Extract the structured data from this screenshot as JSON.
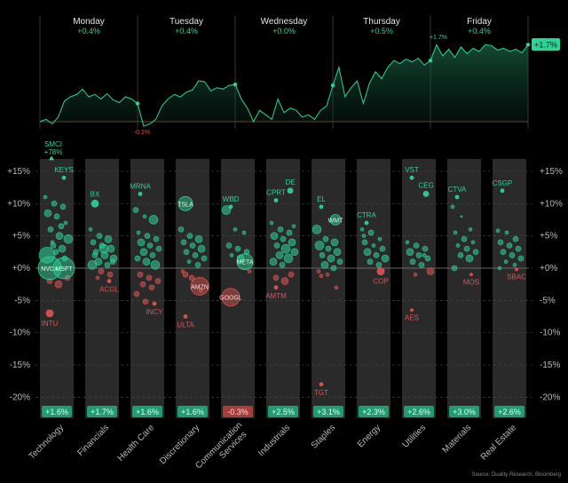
{
  "source": "Source: Duality Research, Bloomberg",
  "colors": {
    "up": "#2bd49a",
    "down": "#e0544f",
    "badge_up": "#1f9c72",
    "badge_down": "#a83c3a",
    "column_bg": "#2a2a2a",
    "grid": "#444444"
  },
  "weekly_chart": {
    "type": "area",
    "days": [
      {
        "name": "Monday",
        "change": "+0.4%"
      },
      {
        "name": "Tuesday",
        "change": "+0.4%"
      },
      {
        "name": "Wednesday",
        "change": "+0.0%"
      },
      {
        "name": "Thursday",
        "change": "+0.5%"
      },
      {
        "name": "Friday",
        "change": "+0.4%"
      }
    ],
    "values": [
      [
        0,
        0.05,
        -0.05,
        0.1,
        0.45,
        0.55,
        0.6,
        0.72,
        0.55,
        0.6,
        0.5,
        0.62,
        0.48,
        0.42,
        0.55,
        0.5,
        0.4
      ],
      [
        0.4,
        -0.1,
        -0.05,
        0.05,
        0.35,
        0.5,
        0.6,
        0.55,
        0.65,
        0.7,
        0.9,
        0.88,
        0.68,
        0.75,
        0.72,
        0.8,
        0.82
      ],
      [
        0.82,
        0.5,
        0.3,
        0.0,
        0.25,
        0.15,
        0.05,
        0.5,
        0.2,
        0.3,
        0.25,
        0.1,
        0.15,
        0.05,
        0.25,
        0.35,
        0.8
      ],
      [
        0.8,
        1.2,
        0.55,
        0.75,
        0.9,
        0.4,
        0.85,
        1.1,
        0.95,
        1.2,
        1.35,
        1.28,
        1.38,
        1.32,
        1.4,
        1.25,
        1.35
      ],
      [
        1.35,
        1.7,
        1.45,
        1.6,
        1.42,
        1.65,
        1.5,
        1.62,
        1.55,
        1.7,
        1.68,
        1.58,
        1.62,
        1.55,
        1.6,
        1.52,
        1.7
      ]
    ],
    "annotations": {
      "low": "-0.1%",
      "high": "+1.7%",
      "last": "+1.7%"
    },
    "ylim": [
      -0.2,
      1.9
    ]
  },
  "chart_data": {
    "type": "scatter",
    "y_ticks": [
      "+15%",
      "+10%",
      "+5%",
      "+0%",
      "-5%",
      "-10%",
      "-15%",
      "-20%"
    ],
    "y_values": [
      15,
      10,
      5,
      0,
      -5,
      -10,
      -15,
      -20
    ],
    "ylim": [
      -21,
      17
    ],
    "grid": true,
    "sectors": [
      {
        "name": "Technology",
        "return": "+1.6%",
        "positive": true,
        "labeled": [
          {
            "t": "SMCI",
            "note": "+78%",
            "v": 17,
            "r": 0,
            "offscale": true
          },
          {
            "t": "KEYS",
            "v": 14,
            "r": 2
          },
          {
            "t": "NVDA",
            "v": 0,
            "r": 13,
            "inside": true
          },
          {
            "t": "MSFT",
            "v": 0,
            "r": 12,
            "inside": true
          },
          {
            "t": "INTU",
            "v": -7,
            "r": 4
          }
        ],
        "others": [
          [
            11,
            2
          ],
          [
            10,
            3
          ],
          [
            9.5,
            3
          ],
          [
            8.5,
            4
          ],
          [
            8,
            3
          ],
          [
            7,
            2
          ],
          [
            6,
            3
          ],
          [
            5,
            4
          ],
          [
            4.5,
            5
          ],
          [
            3.5,
            3
          ],
          [
            3,
            4
          ],
          [
            2,
            9
          ],
          [
            2.5,
            3
          ],
          [
            1.5,
            3
          ],
          [
            -2,
            3
          ],
          [
            -2.5,
            4
          ],
          [
            -1.5,
            3
          ],
          [
            4,
            2
          ],
          [
            6.5,
            3
          ]
        ]
      },
      {
        "name": "Financials",
        "return": "+1.7%",
        "positive": true,
        "labeled": [
          {
            "t": "BX",
            "v": 10,
            "r": 4
          },
          {
            "t": "ACGL",
            "v": -2,
            "r": 2
          }
        ],
        "others": [
          [
            6,
            2
          ],
          [
            5,
            3
          ],
          [
            4.5,
            4
          ],
          [
            4,
            3
          ],
          [
            3.5,
            3
          ],
          [
            3,
            4
          ],
          [
            2.5,
            3
          ],
          [
            2,
            4
          ],
          [
            1.5,
            4
          ],
          [
            1,
            4
          ],
          [
            0.5,
            3
          ],
          [
            0.5,
            5
          ],
          [
            -0.5,
            3
          ],
          [
            -1,
            3
          ],
          [
            2,
            3
          ],
          [
            3,
            5
          ],
          [
            1,
            3
          ],
          [
            -1.5,
            2
          ]
        ]
      },
      {
        "name": "Health Care",
        "return": "+1.6%",
        "positive": true,
        "labeled": [
          {
            "t": "MRNA",
            "v": 11.5,
            "r": 2
          },
          {
            "t": "INCY",
            "v": -5.5,
            "r": 2
          }
        ],
        "others": [
          [
            9,
            3
          ],
          [
            8,
            2
          ],
          [
            7.5,
            5
          ],
          [
            5.5,
            2
          ],
          [
            5,
            3
          ],
          [
            4.5,
            3
          ],
          [
            4,
            4
          ],
          [
            3.5,
            3
          ],
          [
            3,
            3
          ],
          [
            2.5,
            4
          ],
          [
            2,
            3
          ],
          [
            1.5,
            3
          ],
          [
            1,
            4
          ],
          [
            0.5,
            5
          ],
          [
            -1,
            3
          ],
          [
            -1.5,
            3
          ],
          [
            -2,
            3
          ],
          [
            -2.5,
            3
          ],
          [
            -3,
            3
          ],
          [
            -4,
            3
          ],
          [
            -5.2,
            3
          ]
        ]
      },
      {
        "name": "Discretionary",
        "return": "+1.6%",
        "positive": true,
        "labeled": [
          {
            "t": "TSLA",
            "v": 10,
            "r": 8,
            "inside": true
          },
          {
            "t": "AMZN",
            "v": -2.8,
            "r": 10,
            "inside": true
          },
          {
            "t": "ULTA",
            "v": -7.5,
            "r": 2
          }
        ],
        "others": [
          [
            6,
            3
          ],
          [
            5,
            3
          ],
          [
            4.5,
            4
          ],
          [
            4,
            3
          ],
          [
            3.5,
            3
          ],
          [
            3,
            4
          ],
          [
            2.5,
            3
          ],
          [
            2,
            3
          ],
          [
            1.5,
            3
          ],
          [
            1,
            2
          ],
          [
            0.5,
            3
          ],
          [
            -0.5,
            2
          ],
          [
            -1.5,
            3
          ],
          [
            -3.5,
            2
          ],
          [
            -1,
            3
          ]
        ]
      },
      {
        "name": "Communication Services",
        "return": "-0.3%",
        "positive": false,
        "labeled": [
          {
            "t": "WBD",
            "v": 9.5,
            "r": 2
          },
          {
            "t": "META",
            "v": 1,
            "r": 9,
            "inside": true
          },
          {
            "t": "GOOGL",
            "v": -4.5,
            "r": 10,
            "inside": true
          }
        ],
        "others": [
          [
            9,
            5
          ],
          [
            6,
            2
          ],
          [
            5.5,
            2
          ],
          [
            3.5,
            3
          ],
          [
            3,
            3
          ],
          [
            2.5,
            3
          ],
          [
            2,
            2
          ],
          [
            1.5,
            4
          ],
          [
            -0.5,
            2
          ]
        ]
      },
      {
        "name": "Industrials",
        "return": "+2.5%",
        "positive": true,
        "labeled": [
          {
            "t": "CPRT",
            "v": 10.5,
            "r": 2
          },
          {
            "t": "DE",
            "v": 12,
            "r": 3
          },
          {
            "t": "AMTM",
            "v": -3,
            "r": 2
          }
        ],
        "others": [
          [
            7,
            2
          ],
          [
            6,
            3
          ],
          [
            5.5,
            3
          ],
          [
            5,
            4
          ],
          [
            4.5,
            3
          ],
          [
            4,
            4
          ],
          [
            3.5,
            3
          ],
          [
            3,
            5
          ],
          [
            2.5,
            4
          ],
          [
            2,
            4
          ],
          [
            1.5,
            5
          ],
          [
            1,
            4
          ],
          [
            0.5,
            3
          ],
          [
            -1,
            3
          ],
          [
            -1.5,
            3
          ],
          [
            -2,
            4
          ],
          [
            6.5,
            2
          ]
        ]
      },
      {
        "name": "Staples",
        "return": "+3.1%",
        "positive": true,
        "labeled": [
          {
            "t": "EL",
            "v": 9.5,
            "r": 2
          },
          {
            "t": "WMT",
            "v": 7.5,
            "r": 6,
            "inside": true
          },
          {
            "t": "TGT",
            "v": -18,
            "r": 2
          }
        ],
        "others": [
          [
            6,
            5
          ],
          [
            4.5,
            3
          ],
          [
            4,
            4
          ],
          [
            3.5,
            5
          ],
          [
            3,
            3
          ],
          [
            2.5,
            4
          ],
          [
            2,
            3
          ],
          [
            1.5,
            4
          ],
          [
            1,
            3
          ],
          [
            0.5,
            4
          ],
          [
            0,
            3
          ],
          [
            -0.5,
            2
          ],
          [
            -1,
            2
          ],
          [
            -3,
            2
          ],
          [
            -1.2,
            2
          ]
        ]
      },
      {
        "name": "Energy",
        "return": "+2.3%",
        "positive": true,
        "labeled": [
          {
            "t": "CTRA",
            "v": 7,
            "r": 2
          },
          {
            "t": "COP",
            "v": -0.5,
            "r": 4
          }
        ],
        "others": [
          [
            6,
            2
          ],
          [
            5.5,
            3
          ],
          [
            4.5,
            2
          ],
          [
            4,
            3
          ],
          [
            3.5,
            2
          ],
          [
            3,
            3
          ],
          [
            2.5,
            4
          ],
          [
            2,
            3
          ],
          [
            1.5,
            4
          ],
          [
            1,
            3
          ],
          [
            0.5,
            3
          ],
          [
            5,
            2
          ]
        ]
      },
      {
        "name": "Utilities",
        "return": "+2.6%",
        "positive": true,
        "labeled": [
          {
            "t": "VST",
            "v": 14,
            "r": 2
          },
          {
            "t": "CEG",
            "v": 11.5,
            "r": 3
          },
          {
            "t": "AES",
            "v": -6.5,
            "r": 1
          }
        ],
        "others": [
          [
            4,
            2
          ],
          [
            3.5,
            3
          ],
          [
            3,
            3
          ],
          [
            2.5,
            4
          ],
          [
            2,
            3
          ],
          [
            1.5,
            3
          ],
          [
            1,
            3
          ],
          [
            0.5,
            3
          ],
          [
            -0.5,
            4
          ],
          [
            -1,
            2
          ],
          [
            2,
            2
          ]
        ]
      },
      {
        "name": "Materials",
        "return": "+3.0%",
        "positive": true,
        "labeled": [
          {
            "t": "CTVA",
            "v": 11,
            "r": 2
          },
          {
            "t": "MOS",
            "v": -1,
            "r": 1
          }
        ],
        "others": [
          [
            9.5,
            2
          ],
          [
            8,
            1
          ],
          [
            6,
            2
          ],
          [
            5.5,
            2
          ],
          [
            4.5,
            3
          ],
          [
            4,
            2
          ],
          [
            3.5,
            2
          ],
          [
            3,
            3
          ],
          [
            2.5,
            3
          ],
          [
            2,
            3
          ],
          [
            1.5,
            4
          ],
          [
            0,
            3
          ]
        ]
      },
      {
        "name": "Real Estate",
        "return": "+2.6%",
        "positive": true,
        "labeled": [
          {
            "t": "CSGP",
            "v": 12,
            "r": 2
          },
          {
            "t": "SBAC",
            "v": -0.2,
            "r": 1
          }
        ],
        "others": [
          [
            5.8,
            2
          ],
          [
            5.5,
            2
          ],
          [
            4.5,
            3
          ],
          [
            4,
            3
          ],
          [
            3.5,
            3
          ],
          [
            3,
            3
          ],
          [
            2.5,
            3
          ],
          [
            2,
            3
          ],
          [
            1.5,
            3
          ],
          [
            1,
            2
          ],
          [
            0.5,
            2
          ],
          [
            0,
            2
          ]
        ]
      }
    ]
  }
}
